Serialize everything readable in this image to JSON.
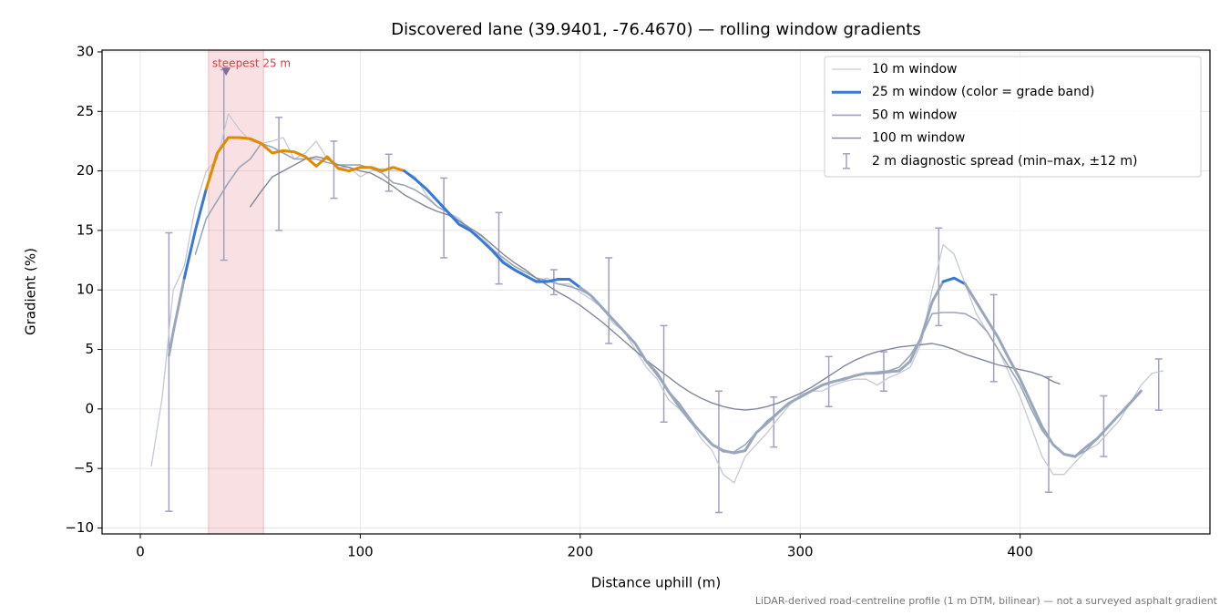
{
  "chart_data": {
    "type": "line",
    "title": "Discovered lane (39.9401, -76.4670) — rolling window gradients",
    "xlabel": "Distance uphill (m)",
    "ylabel": "Gradient (%)",
    "footnote": "LiDAR-derived road-centreline profile (1 m DTM, bilinear) — not a surveyed asphalt gradient",
    "xlim": [
      -17.4,
      486.3
    ],
    "ylim": [
      -10.5,
      30.15
    ],
    "xticks": [
      0,
      100,
      200,
      300,
      400
    ],
    "yticks": [
      {
        "value": -10,
        "label": "−10"
      },
      {
        "value": -5,
        "label": "−5"
      },
      0,
      5,
      10,
      15,
      20,
      25,
      30
    ],
    "grid": true,
    "legend": "upper right",
    "highlight": {
      "label": "steepest 25 m",
      "xlim": [
        31,
        56
      ],
      "marker_x": 39,
      "marker_y": 28.3,
      "color": "#d9404a"
    },
    "grade_bands": {
      "limits": [
        10,
        20
      ],
      "colors": [
        "#9aa7bb",
        "#3a78d6",
        "#e08a00"
      ]
    },
    "series": [
      {
        "name": "10 m window",
        "color": "#c4c9d6",
        "width": 1.3,
        "x": [
          5,
          10,
          15,
          20,
          25,
          30,
          35,
          40,
          45,
          50,
          55,
          60,
          65,
          70,
          75,
          80,
          85,
          90,
          95,
          100,
          105,
          110,
          115,
          120,
          125,
          130,
          135,
          140,
          145,
          150,
          155,
          160,
          165,
          170,
          175,
          180,
          185,
          190,
          195,
          200,
          205,
          210,
          215,
          220,
          225,
          230,
          235,
          240,
          245,
          250,
          255,
          260,
          265,
          270,
          275,
          280,
          285,
          290,
          295,
          300,
          305,
          310,
          315,
          320,
          325,
          330,
          335,
          340,
          345,
          350,
          355,
          360,
          365,
          370,
          375,
          380,
          385,
          390,
          395,
          400,
          405,
          410,
          415,
          420,
          425,
          430,
          435,
          440,
          445,
          450,
          455,
          460,
          465
        ],
        "values": [
          -4.8,
          1,
          10,
          12,
          17,
          20,
          21,
          24.8,
          23.5,
          22.5,
          22.3,
          22.5,
          22.8,
          21,
          21.5,
          22.5,
          21,
          20.3,
          20.3,
          19.5,
          20,
          20.2,
          20,
          20,
          19.5,
          18,
          17,
          16.5,
          16,
          15,
          14.5,
          13.5,
          12.5,
          11.8,
          11.2,
          10.8,
          11,
          10.5,
          10.5,
          9.8,
          9.2,
          8.5,
          7.2,
          6.5,
          5,
          3.5,
          2.5,
          0.8,
          0,
          -1,
          -2.5,
          -3.5,
          -5.5,
          -6.2,
          -4,
          -3,
          -2,
          -0.8,
          0.3,
          1.2,
          1.5,
          1.5,
          2,
          2.3,
          2.5,
          2.5,
          2,
          2.6,
          3,
          3.5,
          5.5,
          10,
          13.8,
          13,
          10.5,
          8,
          6.5,
          5,
          3,
          1,
          -1.5,
          -4,
          -5.5,
          -5.5,
          -4.5,
          -3.5,
          -3,
          -2,
          -1,
          0.5,
          2,
          3,
          3.2
        ]
      },
      {
        "name": "25 m window (color = grade band)",
        "color": "#3a78d6",
        "width": 3,
        "banded": true,
        "x": [
          13,
          15,
          20,
          25,
          30,
          35,
          40,
          45,
          50,
          55,
          60,
          65,
          70,
          75,
          80,
          85,
          90,
          95,
          100,
          105,
          110,
          115,
          120,
          125,
          130,
          135,
          140,
          145,
          150,
          155,
          160,
          165,
          170,
          175,
          180,
          185,
          190,
          195,
          200,
          205,
          210,
          215,
          220,
          225,
          230,
          235,
          240,
          245,
          250,
          255,
          260,
          265,
          270,
          275,
          280,
          285,
          290,
          295,
          300,
          305,
          310,
          315,
          320,
          325,
          330,
          335,
          340,
          345,
          350,
          355,
          360,
          365,
          370,
          375,
          380,
          385,
          390,
          395,
          400,
          405,
          410,
          415,
          420,
          425,
          430,
          435,
          440,
          445,
          450,
          455
        ],
        "values": [
          4.5,
          6.5,
          11,
          15,
          18.5,
          21.5,
          22.8,
          22.8,
          22.7,
          22.3,
          21.5,
          21.7,
          21.6,
          21.2,
          20.4,
          21.2,
          20.2,
          20,
          20.3,
          20.3,
          20,
          20.3,
          20,
          19.3,
          18.5,
          17.5,
          16.5,
          15.5,
          15,
          14.2,
          13.3,
          12.3,
          11.7,
          11.2,
          10.7,
          10.7,
          10.9,
          10.9,
          10.2,
          9.5,
          8.5,
          7.5,
          6.5,
          5.5,
          4,
          3,
          1.5,
          0.2,
          -1,
          -2,
          -3,
          -3.5,
          -3.7,
          -3.5,
          -2,
          -1.2,
          -0.3,
          0.5,
          1,
          1.5,
          2,
          2.3,
          2.5,
          2.8,
          3,
          3,
          3.1,
          3.2,
          4,
          6,
          9,
          10.7,
          11,
          10.5,
          9,
          7.5,
          6,
          4.2,
          2.5,
          0.5,
          -1.5,
          -3,
          -3.8,
          -4,
          -3.2,
          -2.5,
          -1.5,
          -0.5,
          0.5,
          1.5
        ]
      },
      {
        "name": "50 m window",
        "color": "#9ba5bb",
        "width": 1.6,
        "x": [
          25,
          30,
          35,
          40,
          45,
          50,
          55,
          60,
          65,
          70,
          75,
          80,
          85,
          90,
          95,
          100,
          105,
          110,
          115,
          120,
          125,
          130,
          135,
          140,
          145,
          150,
          155,
          160,
          165,
          170,
          175,
          180,
          185,
          190,
          195,
          200,
          205,
          210,
          215,
          220,
          225,
          230,
          235,
          240,
          245,
          250,
          255,
          260,
          265,
          270,
          275,
          280,
          285,
          290,
          295,
          300,
          305,
          310,
          315,
          320,
          325,
          330,
          335,
          340,
          345,
          350,
          355,
          360,
          365,
          370,
          375,
          380,
          385,
          390,
          395,
          400,
          405,
          410,
          415,
          420,
          425,
          430,
          435,
          440,
          445,
          450,
          455
        ],
        "values": [
          13,
          16,
          17.5,
          19,
          20.3,
          21,
          22.3,
          22,
          21.5,
          21,
          21,
          21,
          20.7,
          20.5,
          20.5,
          20.5,
          20.2,
          19.8,
          19,
          18.8,
          18.4,
          17.8,
          17,
          16.5,
          15.8,
          15,
          14.2,
          13.4,
          12.7,
          12,
          11.5,
          11,
          10.8,
          10.5,
          10.3,
          10,
          9.5,
          8.5,
          7.5,
          6.5,
          5.5,
          4,
          2.8,
          1.5,
          0.5,
          -0.8,
          -2,
          -3,
          -3.6,
          -3.6,
          -3,
          -2,
          -1,
          -0.3,
          0.5,
          1,
          1.5,
          2,
          2.3,
          2.6,
          2.8,
          3,
          3.1,
          3.2,
          3.5,
          4.5,
          6,
          8,
          8.1,
          8.1,
          8,
          7.5,
          6.5,
          5,
          3.5,
          2,
          0,
          -1.8,
          -3,
          -3.8,
          -4,
          -3.5,
          -2.5,
          -1.5,
          -0.5,
          0.5,
          1.5
        ]
      },
      {
        "name": "100 m window",
        "color": "#7f8798",
        "width": 1.4,
        "x": [
          50,
          55,
          60,
          65,
          70,
          75,
          80,
          85,
          90,
          95,
          100,
          105,
          110,
          115,
          120,
          125,
          130,
          135,
          140,
          145,
          150,
          155,
          160,
          165,
          170,
          175,
          180,
          185,
          190,
          195,
          200,
          205,
          210,
          215,
          220,
          225,
          230,
          235,
          240,
          245,
          250,
          255,
          260,
          265,
          270,
          275,
          280,
          285,
          290,
          295,
          300,
          305,
          310,
          315,
          320,
          325,
          330,
          335,
          340,
          345,
          350,
          355,
          360,
          365,
          370,
          375,
          380,
          385,
          390,
          395,
          400,
          405,
          410,
          415,
          418
        ],
        "values": [
          17,
          18.3,
          19.5,
          20,
          20.5,
          21,
          21.2,
          21,
          20.5,
          20.3,
          20,
          19.8,
          19.3,
          18.7,
          18,
          17.5,
          17,
          16.6,
          16.3,
          15.8,
          15.2,
          14.6,
          13.8,
          13,
          12.3,
          11.7,
          11,
          10.4,
          9.8,
          9.3,
          8.7,
          8,
          7.3,
          6.5,
          5.7,
          4.9,
          4.1,
          3.4,
          2.7,
          2,
          1.4,
          0.9,
          0.5,
          0.2,
          0,
          -0.1,
          0,
          0.2,
          0.5,
          0.9,
          1.3,
          1.8,
          2.4,
          3,
          3.6,
          4.1,
          4.5,
          4.8,
          5,
          5.2,
          5.3,
          5.4,
          5.5,
          5.3,
          5,
          4.6,
          4.3,
          4,
          3.7,
          3.5,
          3.3,
          3.1,
          2.8,
          2.3,
          2.1
        ]
      }
    ],
    "error_bars": {
      "name": "2 m diagnostic spread (min–max, ±12 m)",
      "color": "#a29fbf",
      "x": [
        13,
        38,
        63,
        88,
        113,
        138,
        163,
        188,
        213,
        238,
        263,
        288,
        313,
        338,
        363,
        388,
        413,
        438,
        463
      ],
      "low": [
        -8.6,
        12.5,
        15,
        17.7,
        18.3,
        12.7,
        10.5,
        9.6,
        5.5,
        -1.1,
        -8.7,
        -3.2,
        0.2,
        1.5,
        7,
        2.3,
        -7,
        -4,
        -0.1
      ],
      "high": [
        14.8,
        28.5,
        24.5,
        22.5,
        21.4,
        19.4,
        16.5,
        11.7,
        12.7,
        7,
        1.5,
        1,
        4.4,
        4.8,
        15.2,
        9.6,
        2.7,
        1.1,
        4.2
      ]
    }
  }
}
